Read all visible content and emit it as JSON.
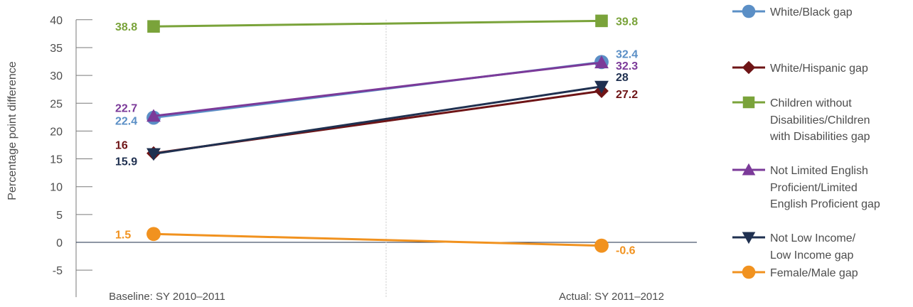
{
  "chart_data": {
    "type": "line",
    "ylabel": "Percentage point difference",
    "xlabel": "",
    "categories": [
      "Baseline: SY 2010–2011",
      "Actual: SY 2011–2012"
    ],
    "ylim": [
      -5,
      40
    ],
    "yticks": [
      40,
      35,
      30,
      25,
      20,
      15,
      10,
      5,
      0,
      -5
    ],
    "grid": false,
    "legend_position": "right",
    "series": [
      {
        "name": "White/Black gap",
        "values": [
          22.4,
          32.4
        ],
        "labels": [
          "22.4",
          "32.4"
        ],
        "color": "#5b8fc6",
        "marker": "circle"
      },
      {
        "name": "White/Hispanic gap",
        "values": [
          16,
          27.2
        ],
        "labels": [
          "16",
          "27.2"
        ],
        "color": "#6e1416",
        "marker": "diamond"
      },
      {
        "name": "Children without\nDisabilities/Children\nwith Disabilities gap",
        "values": [
          38.8,
          39.8
        ],
        "labels": [
          "38.8",
          "39.8"
        ],
        "color": "#7aa33a",
        "marker": "square"
      },
      {
        "name": "Not Limited English\nProficient/Limited\nEnglish Proficient gap",
        "values": [
          22.7,
          32.3
        ],
        "labels": [
          "22.7",
          "32.3"
        ],
        "color": "#7b3a99",
        "marker": "triangle-up"
      },
      {
        "name": "Not Low Income/\nLow Income gap",
        "values": [
          15.9,
          28
        ],
        "labels": [
          "15.9",
          "28"
        ],
        "color": "#1f3050",
        "marker": "triangle-down"
      },
      {
        "name": "Female/Male gap",
        "values": [
          1.5,
          -0.6
        ],
        "labels": [
          "1.5",
          "-0.6"
        ],
        "color": "#f1921f",
        "marker": "circle"
      }
    ]
  }
}
